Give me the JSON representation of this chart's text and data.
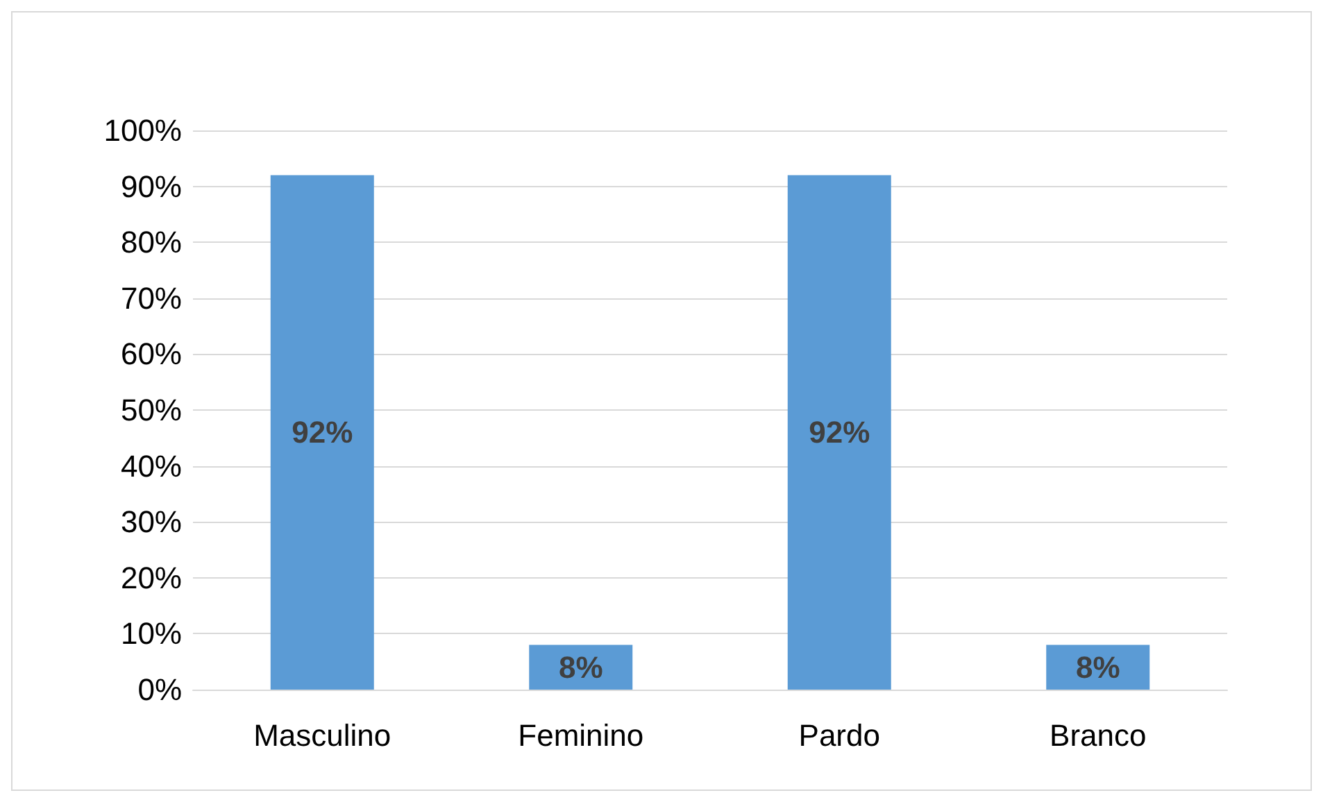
{
  "chart_data": {
    "type": "bar",
    "categories": [
      "Masculino",
      "Feminino",
      "Pardo",
      "Branco"
    ],
    "values": [
      92,
      8,
      92,
      8
    ],
    "value_labels": [
      "92%",
      "8%",
      "92%",
      "8%"
    ],
    "color": "#5b9bd5",
    "ylim": [
      0,
      100
    ],
    "yticks": [
      {
        "value": 0,
        "label": "0%"
      },
      {
        "value": 10,
        "label": "10%"
      },
      {
        "value": 20,
        "label": "20%"
      },
      {
        "value": 30,
        "label": "30%"
      },
      {
        "value": 40,
        "label": "40%"
      },
      {
        "value": 50,
        "label": "50%"
      },
      {
        "value": 60,
        "label": "60%"
      },
      {
        "value": 70,
        "label": "70%"
      },
      {
        "value": 80,
        "label": "80%"
      },
      {
        "value": 90,
        "label": "90%"
      },
      {
        "value": 100,
        "label": "100%"
      }
    ],
    "grid": "y"
  }
}
